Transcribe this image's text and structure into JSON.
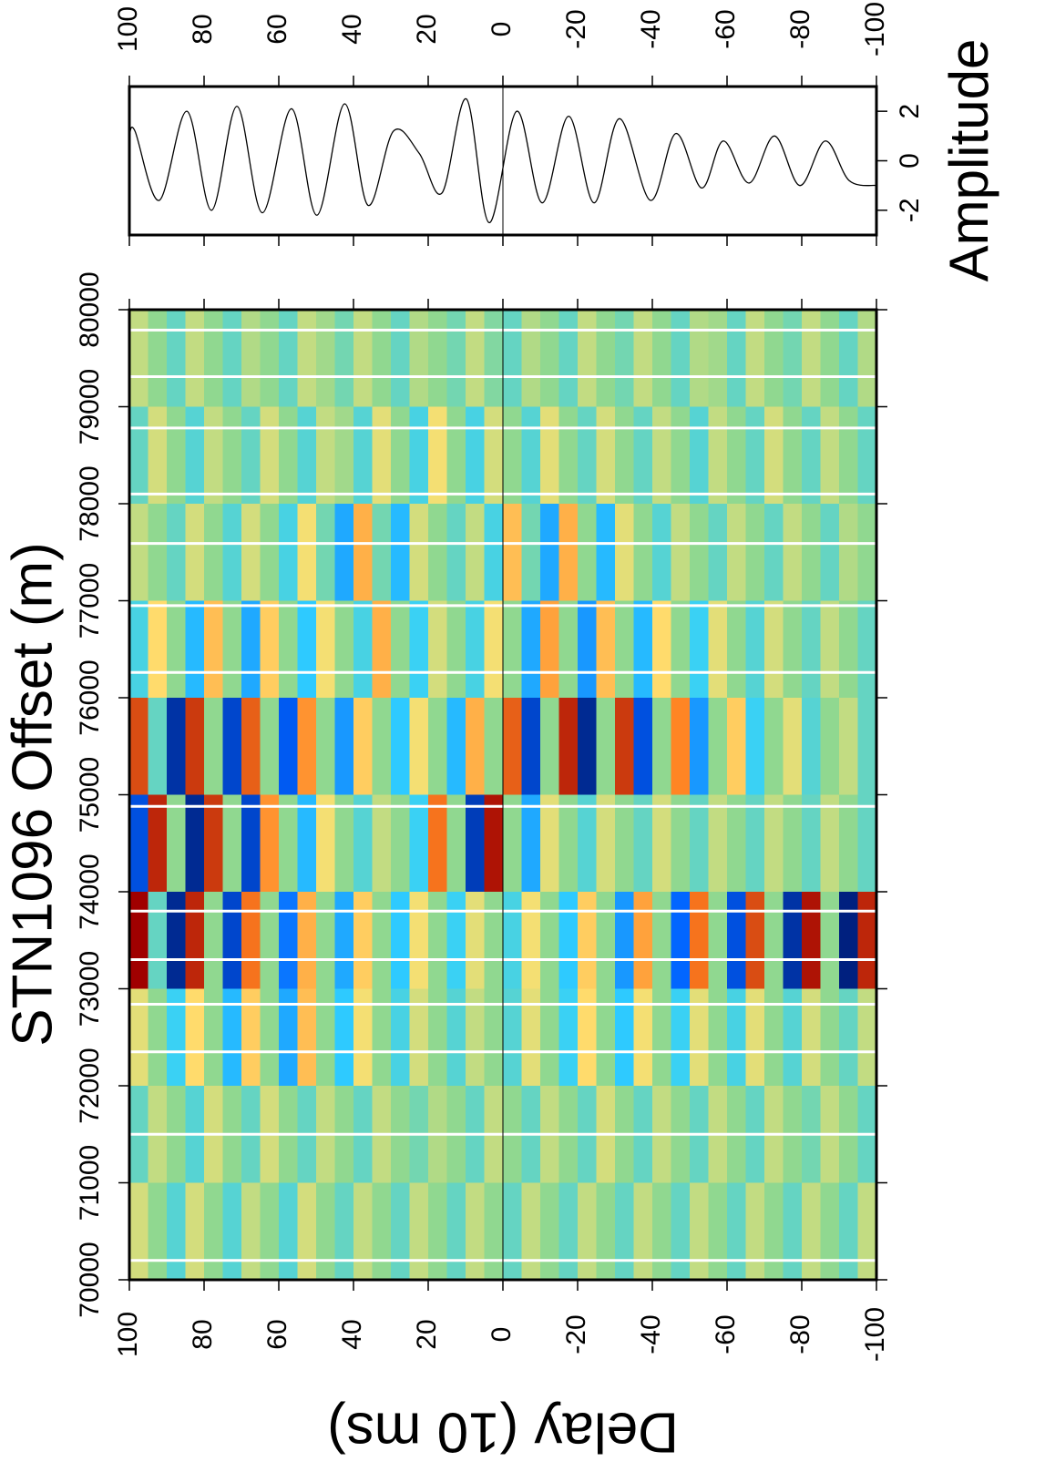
{
  "chart_data": [
    {
      "type": "heatmap",
      "ylabel": "STN1096 Offset (m)",
      "xlabel": "Delay (10 ms)",
      "xlim": [
        100,
        -100
      ],
      "xticks": [
        100,
        80,
        60,
        40,
        20,
        0,
        -20,
        -40,
        -60,
        -80,
        -100
      ],
      "ylim": [
        70000,
        80000
      ],
      "yticks": [
        70000,
        71000,
        72000,
        73000,
        74000,
        75000,
        76000,
        77000,
        78000,
        79000,
        80000
      ],
      "zlim": [
        -2,
        2
      ],
      "colormap": [
        "#00207f",
        "#0060ff",
        "#30d0ff",
        "#90d890",
        "#ffe070",
        "#ff8020",
        "#a00000"
      ],
      "missing_offsets": [
        70200,
        71500,
        72350,
        72840,
        73300,
        73800,
        74880,
        76260,
        76950,
        77590,
        78100,
        78780,
        79310,
        79790
      ],
      "x": [
        97.5,
        92.5,
        87.5,
        82.5,
        77.5,
        72.5,
        67.5,
        62.5,
        57.5,
        52.5,
        47.5,
        42.5,
        37.5,
        32.5,
        27.5,
        22.5,
        17.5,
        12.5,
        7.5,
        2.5,
        -2.5,
        -7.5,
        -12.5,
        -17.5,
        -22.5,
        -27.5,
        -32.5,
        -37.5,
        -42.5,
        -47.5,
        -52.5,
        -57.5,
        -62.5,
        -67.5,
        -72.5,
        -77.5,
        -82.5,
        -87.5,
        -92.5,
        -97.5
      ],
      "y": [
        79500,
        78500,
        77500,
        76500,
        75500,
        74500,
        73500,
        72500,
        71500,
        70500
      ],
      "z": [
        [
          0.3,
          0,
          -0.3,
          0.3,
          0,
          -0.3,
          0.2,
          0,
          -0.3,
          0.3,
          0.1,
          -0.2,
          0.3,
          0,
          -0.3,
          0.2,
          0,
          -0.2,
          0.3,
          -0.1,
          -0.3,
          0.2,
          0,
          -0.3,
          0.3,
          0,
          -0.2,
          0.3,
          0,
          -0.3,
          0.2,
          0.1,
          -0.3,
          0.3,
          0,
          -0.2,
          0.3,
          0,
          -0.3,
          0.2
        ],
        [
          -0.3,
          0.4,
          0,
          -0.4,
          0.3,
          0,
          -0.3,
          0.4,
          0,
          -0.4,
          0.3,
          0.1,
          -0.4,
          0.5,
          0,
          -0.5,
          0.6,
          0,
          -0.5,
          0.4,
          0,
          -0.4,
          0.5,
          0,
          -0.3,
          0.4,
          0,
          -0.3,
          0.3,
          0,
          -0.4,
          0.3,
          0,
          -0.3,
          0.4,
          0,
          -0.3,
          0.3,
          0,
          -0.3
        ],
        [
          0.3,
          0,
          -0.3,
          0.4,
          0,
          -0.4,
          0.4,
          0,
          -0.5,
          0.6,
          -0.2,
          -0.9,
          1.0,
          -0.2,
          -0.8,
          0.4,
          0,
          -0.3,
          0.3,
          -0.5,
          0.9,
          -0.2,
          -0.9,
          1.0,
          0,
          -0.8,
          0.5,
          0,
          -0.4,
          0.3,
          0,
          -0.3,
          0.3,
          0,
          -0.3,
          0.3,
          0,
          -0.3,
          0.2,
          0
        ],
        [
          -0.5,
          0.7,
          0,
          -0.8,
          0.9,
          0,
          -0.9,
          0.8,
          0,
          -0.7,
          0.6,
          0,
          -0.5,
          1.0,
          0,
          -0.6,
          0.4,
          0,
          -0.5,
          0.6,
          0,
          -0.9,
          1.1,
          0,
          -1.0,
          0.9,
          0,
          -0.8,
          0.7,
          0,
          -0.6,
          0.5,
          0,
          -0.4,
          0.4,
          0,
          -0.3,
          0.3,
          0,
          -0.3
        ],
        [
          1.6,
          -0.3,
          -1.8,
          1.7,
          0,
          -1.6,
          1.5,
          0,
          -1.4,
          1.2,
          0,
          -1.0,
          0.8,
          0,
          -0.7,
          0.6,
          0,
          -0.8,
          1.0,
          0,
          1.5,
          -1.6,
          0,
          1.8,
          -1.9,
          0,
          1.7,
          -1.5,
          0,
          1.3,
          -1.0,
          0,
          0.8,
          -0.6,
          0,
          0.5,
          -0.4,
          0,
          0.3,
          -0.3
        ],
        [
          -1.5,
          1.8,
          0,
          -1.9,
          1.7,
          0,
          -1.6,
          1.2,
          0,
          -0.8,
          0.6,
          0,
          -0.4,
          0.3,
          0,
          -0.6,
          1.4,
          0,
          -1.7,
          1.9,
          0,
          -0.9,
          0.5,
          0,
          -0.4,
          0.4,
          0,
          -0.3,
          0.4,
          0,
          -0.3,
          0.3,
          0,
          -0.3,
          0.3,
          0,
          -0.3,
          0.3,
          0,
          -0.3
        ],
        [
          2.0,
          -0.3,
          -1.9,
          1.8,
          0,
          -1.6,
          1.4,
          0,
          -1.2,
          1.0,
          0,
          -0.9,
          0.8,
          0,
          -0.7,
          0.6,
          0,
          -0.6,
          0.5,
          0,
          -0.5,
          0.6,
          0,
          -0.7,
          0.8,
          0,
          -1.0,
          1.1,
          0,
          -1.3,
          1.4,
          0,
          -1.5,
          1.6,
          0,
          -1.8,
          1.9,
          0,
          -2.0,
          1.8
        ],
        [
          0.5,
          0,
          -0.6,
          0.7,
          0,
          -0.8,
          0.8,
          0,
          -0.9,
          0.9,
          0,
          -0.7,
          0.6,
          0,
          -0.5,
          0.4,
          0,
          -0.4,
          0.3,
          0,
          -0.4,
          0.5,
          0,
          -0.6,
          0.7,
          0,
          -0.7,
          0.6,
          0,
          -0.6,
          0.5,
          0,
          -0.5,
          0.5,
          0,
          -0.4,
          0.4,
          0,
          -0.3,
          0.3
        ],
        [
          -0.3,
          0.3,
          0,
          -0.4,
          0.4,
          0,
          -0.3,
          0.4,
          0,
          -0.3,
          0.3,
          0,
          -0.3,
          0.3,
          0,
          -0.2,
          0.2,
          0,
          -0.3,
          0.3,
          0,
          -0.3,
          0.3,
          0,
          -0.3,
          0.4,
          0,
          -0.3,
          0.3,
          0,
          -0.3,
          0.3,
          0,
          -0.3,
          0.3,
          0,
          -0.2,
          0.3,
          0,
          -0.3
        ],
        [
          0.4,
          0,
          -0.4,
          0.4,
          0,
          -0.4,
          0.3,
          0,
          -0.4,
          0.4,
          0,
          -0.3,
          0.3,
          0,
          -0.3,
          0.3,
          0,
          -0.3,
          0.3,
          0,
          -0.3,
          0.3,
          0,
          -0.3,
          0.3,
          0,
          -0.3,
          0.3,
          0,
          -0.3,
          0.3,
          0,
          -0.3,
          0.3,
          0,
          -0.3,
          0.3,
          0,
          -0.3,
          0.3
        ]
      ]
    },
    {
      "type": "line",
      "ylabel": "Amplitude",
      "color": "#000000",
      "xlim": [
        100,
        -100
      ],
      "xticks": [
        100,
        80,
        60,
        40,
        20,
        0,
        -20,
        -40,
        -60,
        -80,
        -100
      ],
      "ylim": [
        -3,
        3
      ],
      "yticks": [
        -2,
        0,
        2
      ],
      "x": [
        100,
        98.5,
        92,
        84.6,
        78,
        71.2,
        64.4,
        56.6,
        49.8,
        42.4,
        36.1,
        29.3,
        22.4,
        16.3,
        9.8,
        3.7,
        -3.7,
        -10.5,
        -17.6,
        -24.4,
        -31.2,
        -39.5,
        -46.3,
        -53.2,
        -59,
        -65.9,
        -72.7,
        -79.5,
        -86.3,
        -92.7,
        -100
      ],
      "values": [
        1.0,
        1.2,
        -1.6,
        2.0,
        -2.0,
        2.2,
        -2.1,
        2.1,
        -2.2,
        2.3,
        -1.8,
        1.2,
        0.3,
        -1.3,
        2.5,
        -2.5,
        2.0,
        -1.7,
        1.8,
        -1.7,
        1.7,
        -1.6,
        1.1,
        -1.1,
        0.8,
        -0.9,
        1.0,
        -1.0,
        0.8,
        -0.8,
        -1.0
      ]
    }
  ]
}
